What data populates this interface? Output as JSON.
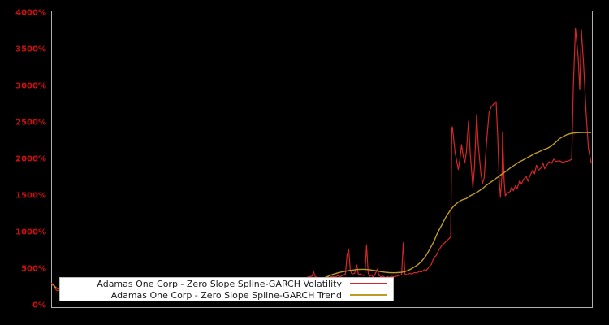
{
  "figure": {
    "background_color": "#000000",
    "plot_border_color": "#b0b0b0",
    "tick_label_color": "#cc1111"
  },
  "chart_data": {
    "type": "line",
    "title": "",
    "xlabel": "",
    "ylabel": "",
    "x_tick_labels": [],
    "ylim": [
      0,
      4000
    ],
    "y_unit": "%",
    "grid": false,
    "legend_position": "lower-left",
    "y_ticks": [
      {
        "value": 0,
        "label": "0%"
      },
      {
        "value": 500,
        "label": "500%"
      },
      {
        "value": 1000,
        "label": "1000%"
      },
      {
        "value": 1500,
        "label": "1500%"
      },
      {
        "value": 2000,
        "label": "2000%"
      },
      {
        "value": 2500,
        "label": "2500%"
      },
      {
        "value": 3000,
        "label": "3000%"
      },
      {
        "value": 3500,
        "label": "3500%"
      },
      {
        "value": 4000,
        "label": "4000%"
      }
    ],
    "series": [
      {
        "name": "Adamas One Corp - Zero Slope Spline-GARCH Volatility",
        "color": "#d62728",
        "points": [
          [
            0.0,
            310
          ],
          [
            0.002,
            298
          ],
          [
            0.003,
            272
          ],
          [
            0.005,
            288
          ],
          [
            0.006,
            252
          ],
          [
            0.008,
            228
          ],
          [
            0.009,
            215
          ],
          [
            0.011,
            205
          ],
          [
            0.018,
            212
          ],
          [
            0.041,
            228
          ],
          [
            0.063,
            238
          ],
          [
            0.086,
            248
          ],
          [
            0.108,
            255
          ],
          [
            0.131,
            263
          ],
          [
            0.153,
            270
          ],
          [
            0.176,
            278
          ],
          [
            0.198,
            285
          ],
          [
            0.221,
            292
          ],
          [
            0.243,
            299
          ],
          [
            0.266,
            306
          ],
          [
            0.288,
            312
          ],
          [
            0.311,
            318
          ],
          [
            0.333,
            325
          ],
          [
            0.356,
            331
          ],
          [
            0.378,
            338
          ],
          [
            0.401,
            345
          ],
          [
            0.423,
            352
          ],
          [
            0.446,
            360
          ],
          [
            0.461,
            368
          ],
          [
            0.473,
            383
          ],
          [
            0.479,
            395
          ],
          [
            0.483,
            400
          ],
          [
            0.486,
            462
          ],
          [
            0.489,
            396
          ],
          [
            0.494,
            380
          ],
          [
            0.498,
            370
          ],
          [
            0.503,
            386
          ],
          [
            0.506,
            375
          ],
          [
            0.511,
            394
          ],
          [
            0.515,
            380
          ],
          [
            0.521,
            400
          ],
          [
            0.526,
            386
          ],
          [
            0.53,
            408
          ],
          [
            0.536,
            395
          ],
          [
            0.541,
            418
          ],
          [
            0.545,
            430
          ],
          [
            0.548,
            690
          ],
          [
            0.551,
            775
          ],
          [
            0.554,
            480
          ],
          [
            0.557,
            430
          ],
          [
            0.562,
            440
          ],
          [
            0.566,
            555
          ],
          [
            0.569,
            420
          ],
          [
            0.573,
            432
          ],
          [
            0.578,
            410
          ],
          [
            0.581,
            422
          ],
          [
            0.584,
            830
          ],
          [
            0.587,
            440
          ],
          [
            0.59,
            400
          ],
          [
            0.593,
            420
          ],
          [
            0.596,
            390
          ],
          [
            0.599,
            412
          ],
          [
            0.604,
            500
          ],
          [
            0.607,
            410
          ],
          [
            0.611,
            392
          ],
          [
            0.614,
            402
          ],
          [
            0.619,
            382
          ],
          [
            0.623,
            396
          ],
          [
            0.626,
            386
          ],
          [
            0.631,
            400
          ],
          [
            0.635,
            392
          ],
          [
            0.64,
            402
          ],
          [
            0.644,
            412
          ],
          [
            0.649,
            422
          ],
          [
            0.652,
            858
          ],
          [
            0.655,
            432
          ],
          [
            0.659,
            420
          ],
          [
            0.664,
            440
          ],
          [
            0.668,
            430
          ],
          [
            0.673,
            452
          ],
          [
            0.677,
            445
          ],
          [
            0.682,
            465
          ],
          [
            0.686,
            460
          ],
          [
            0.691,
            490
          ],
          [
            0.695,
            482
          ],
          [
            0.7,
            530
          ],
          [
            0.704,
            560
          ],
          [
            0.709,
            660
          ],
          [
            0.713,
            682
          ],
          [
            0.718,
            760
          ],
          [
            0.724,
            828
          ],
          [
            0.73,
            868
          ],
          [
            0.736,
            908
          ],
          [
            0.74,
            938
          ],
          [
            0.742,
            2410
          ],
          [
            0.743,
            2444
          ],
          [
            0.748,
            2100
          ],
          [
            0.751,
            1978
          ],
          [
            0.754,
            1860
          ],
          [
            0.757,
            2000
          ],
          [
            0.76,
            2200
          ],
          [
            0.763,
            2050
          ],
          [
            0.766,
            1950
          ],
          [
            0.769,
            2100
          ],
          [
            0.773,
            2520
          ],
          [
            0.776,
            2100
          ],
          [
            0.781,
            1611
          ],
          [
            0.784,
            1900
          ],
          [
            0.788,
            2611
          ],
          [
            0.791,
            2200
          ],
          [
            0.796,
            1800
          ],
          [
            0.799,
            1670
          ],
          [
            0.802,
            1750
          ],
          [
            0.806,
            2200
          ],
          [
            0.811,
            2640
          ],
          [
            0.815,
            2720
          ],
          [
            0.82,
            2760
          ],
          [
            0.824,
            2789
          ],
          [
            0.827,
            2300
          ],
          [
            0.83,
            1700
          ],
          [
            0.832,
            1478
          ],
          [
            0.835,
            1800
          ],
          [
            0.836,
            2370
          ],
          [
            0.839,
            1700
          ],
          [
            0.841,
            1500
          ],
          [
            0.845,
            1540
          ],
          [
            0.85,
            1560
          ],
          [
            0.853,
            1620
          ],
          [
            0.856,
            1570
          ],
          [
            0.86,
            1640
          ],
          [
            0.863,
            1600
          ],
          [
            0.868,
            1710
          ],
          [
            0.871,
            1660
          ],
          [
            0.875,
            1730
          ],
          [
            0.88,
            1762
          ],
          [
            0.883,
            1700
          ],
          [
            0.887,
            1780
          ],
          [
            0.892,
            1856
          ],
          [
            0.895,
            1800
          ],
          [
            0.899,
            1920
          ],
          [
            0.902,
            1850
          ],
          [
            0.907,
            1880
          ],
          [
            0.911,
            1944
          ],
          [
            0.914,
            1870
          ],
          [
            0.919,
            1930
          ],
          [
            0.922,
            1967
          ],
          [
            0.926,
            1940
          ],
          [
            0.931,
            2000
          ],
          [
            0.935,
            1970
          ],
          [
            0.941,
            1980
          ],
          [
            0.947,
            1960
          ],
          [
            0.953,
            1970
          ],
          [
            0.959,
            1980
          ],
          [
            0.964,
            2000
          ],
          [
            0.967,
            3000
          ],
          [
            0.971,
            3789
          ],
          [
            0.976,
            3400
          ],
          [
            0.979,
            2950
          ],
          [
            0.982,
            3767
          ],
          [
            0.986,
            3300
          ],
          [
            0.991,
            2600
          ],
          [
            0.995,
            2150
          ],
          [
            1.0,
            1950
          ]
        ]
      },
      {
        "name": "Adamas One Corp - Zero Slope Spline-GARCH Trend",
        "color": "#c09a28",
        "points": [
          [
            0.002,
            300
          ],
          [
            0.005,
            278
          ],
          [
            0.008,
            250
          ],
          [
            0.011,
            235
          ],
          [
            0.041,
            242
          ],
          [
            0.071,
            250
          ],
          [
            0.101,
            258
          ],
          [
            0.131,
            266
          ],
          [
            0.161,
            274
          ],
          [
            0.191,
            282
          ],
          [
            0.221,
            290
          ],
          [
            0.251,
            298
          ],
          [
            0.281,
            305
          ],
          [
            0.311,
            312
          ],
          [
            0.341,
            319
          ],
          [
            0.371,
            326
          ],
          [
            0.401,
            332
          ],
          [
            0.431,
            338
          ],
          [
            0.461,
            344
          ],
          [
            0.483,
            348
          ],
          [
            0.498,
            356
          ],
          [
            0.506,
            380
          ],
          [
            0.514,
            402
          ],
          [
            0.521,
            425
          ],
          [
            0.529,
            442
          ],
          [
            0.536,
            456
          ],
          [
            0.544,
            468
          ],
          [
            0.551,
            478
          ],
          [
            0.559,
            486
          ],
          [
            0.566,
            492
          ],
          [
            0.574,
            495
          ],
          [
            0.581,
            495
          ],
          [
            0.589,
            490
          ],
          [
            0.596,
            482
          ],
          [
            0.604,
            472
          ],
          [
            0.611,
            463
          ],
          [
            0.619,
            455
          ],
          [
            0.626,
            450
          ],
          [
            0.634,
            448
          ],
          [
            0.641,
            450
          ],
          [
            0.649,
            455
          ],
          [
            0.656,
            465
          ],
          [
            0.664,
            490
          ],
          [
            0.671,
            520
          ],
          [
            0.679,
            558
          ],
          [
            0.686,
            605
          ],
          [
            0.694,
            680
          ],
          [
            0.701,
            770
          ],
          [
            0.709,
            880
          ],
          [
            0.716,
            1000
          ],
          [
            0.724,
            1110
          ],
          [
            0.731,
            1210
          ],
          [
            0.739,
            1300
          ],
          [
            0.746,
            1365
          ],
          [
            0.754,
            1415
          ],
          [
            0.761,
            1445
          ],
          [
            0.769,
            1465
          ],
          [
            0.776,
            1500
          ],
          [
            0.784,
            1530
          ],
          [
            0.791,
            1560
          ],
          [
            0.799,
            1600
          ],
          [
            0.806,
            1645
          ],
          [
            0.814,
            1685
          ],
          [
            0.821,
            1725
          ],
          [
            0.829,
            1765
          ],
          [
            0.836,
            1805
          ],
          [
            0.844,
            1845
          ],
          [
            0.851,
            1885
          ],
          [
            0.859,
            1925
          ],
          [
            0.866,
            1960
          ],
          [
            0.874,
            1990
          ],
          [
            0.881,
            2020
          ],
          [
            0.889,
            2050
          ],
          [
            0.896,
            2080
          ],
          [
            0.904,
            2105
          ],
          [
            0.911,
            2130
          ],
          [
            0.919,
            2150
          ],
          [
            0.926,
            2180
          ],
          [
            0.934,
            2230
          ],
          [
            0.941,
            2280
          ],
          [
            0.949,
            2315
          ],
          [
            0.956,
            2340
          ],
          [
            0.964,
            2355
          ],
          [
            0.971,
            2362
          ],
          [
            0.979,
            2365
          ],
          [
            0.986,
            2366
          ],
          [
            0.994,
            2366
          ],
          [
            1.0,
            2365
          ]
        ]
      }
    ]
  }
}
